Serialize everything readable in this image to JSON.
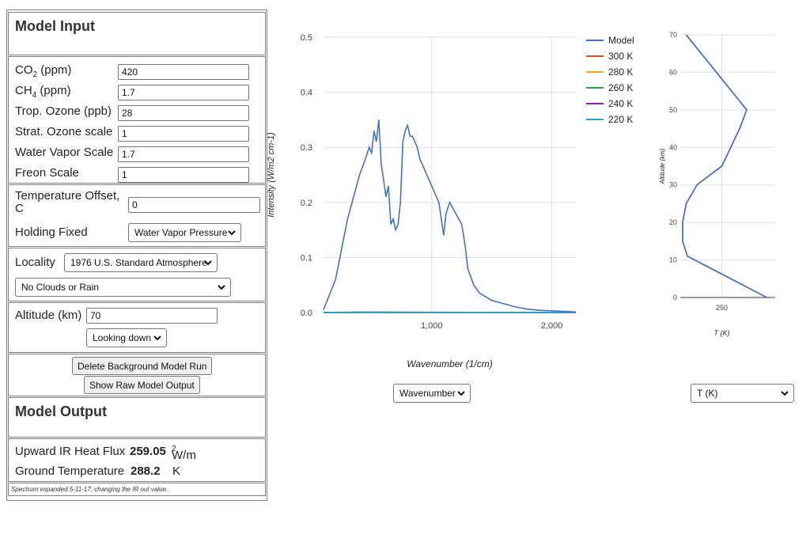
{
  "model_input": {
    "title": "Model Input",
    "co2": {
      "label_main": "CO",
      "label_sub": "2",
      "label_tail": " (ppm)",
      "value": "420"
    },
    "ch4": {
      "label_main": "CH",
      "label_sub": "4",
      "label_tail": " (ppm)",
      "value": "1.7"
    },
    "trop_ozone": {
      "label": "Trop. Ozone (ppb)",
      "value": "28"
    },
    "strat_ozone": {
      "label": "Strat. Ozone scale",
      "value": "1"
    },
    "water_vapor": {
      "label": "Water Vapor Scale",
      "value": "1.7"
    },
    "freon": {
      "label": "Freon Scale",
      "value": "1"
    },
    "temp_offset": {
      "label_line1": "Temperature Offset,",
      "label_line2": "C",
      "value": "0"
    },
    "holding_fixed": {
      "label": "Holding Fixed",
      "selected": "Water Vapor Pressure"
    },
    "locality": {
      "label": "Locality",
      "selected": "1976 U.S. Standard Atmosphere"
    },
    "clouds": {
      "selected": "No Clouds or Rain"
    },
    "altitude": {
      "label": "Altitude (km)",
      "value": "70"
    },
    "looking": {
      "selected": "Looking down"
    },
    "delete_button": "Delete Background Model Run",
    "raw_button": "Show Raw Model Output"
  },
  "model_output": {
    "title": "Model Output",
    "flux_label": "Upward IR Heat Flux",
    "flux_value": "259.05",
    "flux_unit_main": "W/m",
    "flux_unit_sup": "2",
    "ground_label": "Ground Temperature",
    "ground_value": "288.2",
    "ground_unit": "K",
    "note": "Spectrum expanded 5-11-17, changing the IR out value."
  },
  "spectrum_selector": {
    "selected": "Wavenumber"
  },
  "profile_selector": {
    "selected": "T (K)"
  },
  "colors": {
    "model": "#4472c4",
    "t300": "#db4c24",
    "t280": "#f5a623",
    "t260": "#2e9e3e",
    "t240": "#8e1fa6",
    "t220": "#22a7d1",
    "grid": "#e0e0e0",
    "axis": "#333333"
  },
  "chart_data": [
    {
      "type": "line",
      "xlabel": "Wavenumber (1/cm)",
      "ylabel": "Intensity (W/m2 cm-1)",
      "xlim": [
        100,
        2200
      ],
      "ylim": [
        0,
        0.5
      ],
      "x_ticks": [
        {
          "v": 1000,
          "label": "1,000"
        },
        {
          "v": 2000,
          "label": "2,000"
        }
      ],
      "y_ticks": [
        {
          "v": 0,
          "label": "0.0"
        },
        {
          "v": 0.1,
          "label": "0.1"
        },
        {
          "v": 0.2,
          "label": "0.2"
        },
        {
          "v": 0.3,
          "label": "0.3"
        },
        {
          "v": 0.4,
          "label": "0.4"
        },
        {
          "v": 0.5,
          "label": "0.5"
        }
      ],
      "legend_position": "right",
      "planck_series": [
        {
          "name": "300 K",
          "temperature": 300,
          "color_key": "t300"
        },
        {
          "name": "280 K",
          "temperature": 280,
          "color_key": "t280"
        },
        {
          "name": "260 K",
          "temperature": 260,
          "color_key": "t260"
        },
        {
          "name": "240 K",
          "temperature": 240,
          "color_key": "t240"
        },
        {
          "name": "220 K",
          "temperature": 220,
          "color_key": "t220"
        }
      ],
      "model_series": {
        "name": "Model",
        "color_key": "model",
        "x": [
          100,
          200,
          300,
          400,
          450,
          480,
          500,
          520,
          540,
          560,
          580,
          600,
          620,
          640,
          660,
          680,
          700,
          720,
          740,
          760,
          780,
          800,
          820,
          840,
          860,
          880,
          900,
          920,
          940,
          960,
          980,
          1000,
          1020,
          1040,
          1060,
          1080,
          1100,
          1120,
          1150,
          1200,
          1250,
          1280,
          1300,
          1350,
          1400,
          1500,
          1600,
          1700,
          1800,
          1900,
          2000,
          2100,
          2200
        ],
        "y": [
          0.005,
          0.06,
          0.17,
          0.25,
          0.28,
          0.3,
          0.29,
          0.33,
          0.31,
          0.35,
          0.27,
          0.24,
          0.21,
          0.23,
          0.16,
          0.17,
          0.15,
          0.16,
          0.2,
          0.31,
          0.33,
          0.34,
          0.32,
          0.32,
          0.31,
          0.3,
          0.28,
          0.27,
          0.26,
          0.25,
          0.24,
          0.23,
          0.22,
          0.21,
          0.2,
          0.17,
          0.14,
          0.18,
          0.2,
          0.18,
          0.16,
          0.12,
          0.08,
          0.05,
          0.035,
          0.022,
          0.016,
          0.01,
          0.006,
          0.004,
          0.003,
          0.002,
          0.001
        ]
      }
    },
    {
      "type": "line",
      "xlabel": "T (K)",
      "ylabel": "Altitude (km)",
      "xlim": [
        215,
        295
      ],
      "ylim": [
        0,
        70
      ],
      "x_ticks": [
        {
          "v": 250,
          "label": "250"
        }
      ],
      "y_ticks": [
        {
          "v": 0,
          "label": "0"
        },
        {
          "v": 10,
          "label": "10"
        },
        {
          "v": 20,
          "label": "20"
        },
        {
          "v": 30,
          "label": "30"
        },
        {
          "v": 40,
          "label": "40"
        },
        {
          "v": 50,
          "label": "50"
        },
        {
          "v": 60,
          "label": "60"
        },
        {
          "v": 70,
          "label": "70"
        }
      ],
      "series": [
        {
          "name": "",
          "color_key": "model",
          "x": [
            288,
            221,
            217,
            217,
            220,
            229,
            250,
            265,
            271,
            220
          ],
          "y": [
            0,
            11,
            15,
            20,
            25,
            30,
            35,
            45,
            50,
            70
          ]
        }
      ]
    }
  ]
}
